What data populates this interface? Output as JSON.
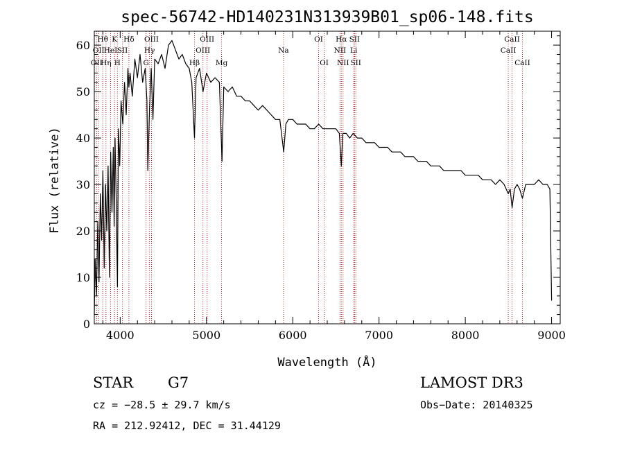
{
  "chart_data": {
    "type": "line",
    "title": "spec-56742-HD140231N313939B01_sp06-148.fits",
    "xlabel": "Wavelength (Å)",
    "ylabel": "Flux (relative)",
    "xlim": [
      3700,
      9100
    ],
    "ylim": [
      0,
      63
    ],
    "xticks": [
      4000,
      5000,
      6000,
      7000,
      8000,
      9000
    ],
    "yticks": [
      0,
      10,
      20,
      30,
      40,
      50,
      60
    ],
    "series": [
      {
        "name": "flux",
        "x": [
          3700,
          3710,
          3725,
          3740,
          3755,
          3770,
          3785,
          3800,
          3815,
          3830,
          3845,
          3860,
          3875,
          3890,
          3905,
          3920,
          3930,
          3940,
          3955,
          3968,
          3980,
          3995,
          4010,
          4030,
          4050,
          4070,
          4090,
          4101,
          4115,
          4140,
          4170,
          4200,
          4230,
          4260,
          4290,
          4310,
          4320,
          4340,
          4360,
          4380,
          4400,
          4440,
          4480,
          4520,
          4560,
          4600,
          4640,
          4680,
          4720,
          4760,
          4800,
          4830,
          4861,
          4880,
          4920,
          4960,
          5000,
          5050,
          5100,
          5150,
          5180,
          5200,
          5250,
          5300,
          5350,
          5400,
          5450,
          5500,
          5550,
          5600,
          5650,
          5700,
          5750,
          5800,
          5850,
          5895,
          5920,
          5950,
          6000,
          6050,
          6100,
          6150,
          6200,
          6250,
          6300,
          6350,
          6400,
          6450,
          6500,
          6540,
          6563,
          6580,
          6620,
          6660,
          6700,
          6750,
          6800,
          6850,
          6900,
          6950,
          7000,
          7050,
          7100,
          7150,
          7200,
          7250,
          7300,
          7350,
          7400,
          7450,
          7500,
          7550,
          7600,
          7650,
          7700,
          7750,
          7800,
          7850,
          7900,
          7950,
          8000,
          8050,
          8100,
          8150,
          8200,
          8250,
          8300,
          8350,
          8400,
          8450,
          8498,
          8520,
          8542,
          8570,
          8600,
          8630,
          8662,
          8700,
          8750,
          8800,
          8850,
          8900,
          8950,
          8980,
          9000
        ],
        "values": [
          2,
          14,
          6,
          22,
          9,
          28,
          18,
          33,
          12,
          30,
          20,
          34,
          10,
          37,
          24,
          38,
          21,
          40,
          26,
          8,
          42,
          34,
          48,
          43,
          52,
          45,
          55,
          51,
          54,
          49,
          57,
          53,
          58,
          52,
          55,
          48,
          33,
          46,
          55,
          44,
          57,
          56,
          58,
          55,
          60,
          61,
          59,
          57,
          58,
          56,
          55,
          52,
          40,
          53,
          55,
          50,
          54,
          52,
          53,
          52,
          35,
          51,
          50,
          51,
          49,
          49,
          48,
          48,
          47,
          46,
          47,
          46,
          45,
          44,
          44,
          37,
          43,
          44,
          44,
          43,
          43,
          43,
          42,
          42,
          43,
          42,
          42,
          42,
          42,
          41,
          34,
          41,
          41,
          40,
          41,
          40,
          40,
          39,
          39,
          39,
          38,
          38,
          38,
          37,
          37,
          37,
          36,
          36,
          36,
          35,
          35,
          35,
          34,
          34,
          34,
          33,
          33,
          33,
          33,
          33,
          32,
          32,
          32,
          32,
          31,
          31,
          31,
          30,
          31,
          30,
          28,
          29,
          25,
          29,
          30,
          29,
          27,
          30,
          30,
          30,
          31,
          30,
          30,
          29,
          5
        ]
      }
    ],
    "line_markers": [
      {
        "wave": 3727,
        "label": "OII",
        "row": 3
      },
      {
        "wave": 3750,
        "label": "OII",
        "row": 2
      },
      {
        "wave": 3798,
        "label": "Hθ",
        "row": 1
      },
      {
        "wave": 3835,
        "label": "Hη",
        "row": 3
      },
      {
        "wave": 3889,
        "label": "HeI",
        "row": 2
      },
      {
        "wave": 3934,
        "label": "K",
        "row": 1
      },
      {
        "wave": 3968,
        "label": "H",
        "row": 3
      },
      {
        "wave": 4026,
        "label": "SII",
        "row": 2
      },
      {
        "wave": 4101,
        "label": "Hδ",
        "row": 1
      },
      {
        "wave": 4300,
        "label": "G",
        "row": 3
      },
      {
        "wave": 4340,
        "label": "Hγ",
        "row": 2
      },
      {
        "wave": 4363,
        "label": "OIII",
        "row": 1
      },
      {
        "wave": 4861,
        "label": "Hβ",
        "row": 3
      },
      {
        "wave": 4959,
        "label": "OIII",
        "row": 2
      },
      {
        "wave": 5007,
        "label": "OIII",
        "row": 1
      },
      {
        "wave": 5175,
        "label": "Mg",
        "row": 3
      },
      {
        "wave": 5893,
        "label": "Na",
        "row": 2
      },
      {
        "wave": 6300,
        "label": "OI",
        "row": 1
      },
      {
        "wave": 6364,
        "label": "OI",
        "row": 3
      },
      {
        "wave": 6548,
        "label": "NII",
        "row": 2
      },
      {
        "wave": 6563,
        "label": "Hα",
        "row": 1
      },
      {
        "wave": 6583,
        "label": "NII",
        "row": 3
      },
      {
        "wave": 6707,
        "label": "Li",
        "row": 2
      },
      {
        "wave": 6716,
        "label": "SII",
        "row": 1
      },
      {
        "wave": 6731,
        "label": "SII",
        "row": 3
      },
      {
        "wave": 8498,
        "label": "CaII",
        "row": 2
      },
      {
        "wave": 8542,
        "label": "CaII",
        "row": 1
      },
      {
        "wave": 8662,
        "label": "CaII",
        "row": 3
      }
    ],
    "marker_color": "#b22222"
  },
  "info": {
    "class": "STAR",
    "subclass": "G7",
    "survey": "LAMOST DR3",
    "cz": "cz = −28.5 ± 29.7 km/s",
    "obs_date": "Obs−Date: 20140325",
    "coords": "RA = 212.92412, DEC =  31.44129"
  }
}
